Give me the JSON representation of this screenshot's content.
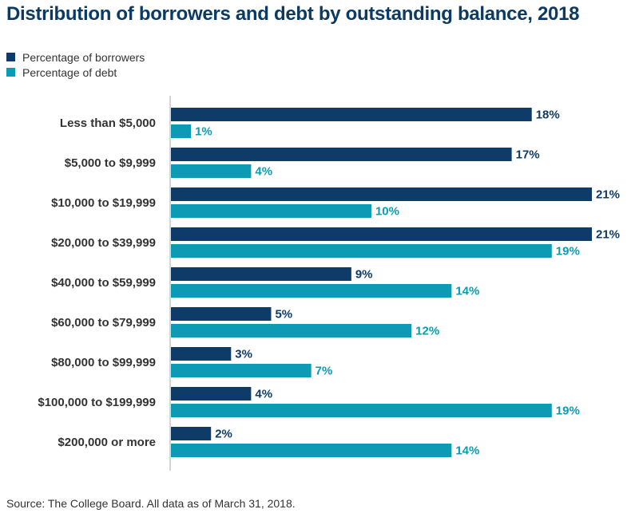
{
  "title": "Distribution of borrowers and debt by outstanding balance, 2018",
  "legend": [
    {
      "label": "Percentage of borrowers",
      "color": "#0f3b68"
    },
    {
      "label": "Percentage of debt",
      "color": "#0d9ab4"
    }
  ],
  "source": "Source: The College Board. All data as of March 31, 2018.",
  "chart_data": {
    "type": "bar",
    "orientation": "horizontal",
    "categories": [
      "Less than $5,000",
      "$5,000 to $9,999",
      "$10,000 to $19,999",
      "$20,000 to $39,999",
      "$40,000 to $59,999",
      "$60,000 to $79,999",
      "$80,000 to $99,999",
      "$100,000 to $199,999",
      "$200,000 or more"
    ],
    "series": [
      {
        "name": "Percentage of borrowers",
        "values": [
          18,
          17,
          21,
          21,
          9,
          5,
          3,
          4,
          2
        ],
        "color": "#0f3b68",
        "label_color": "#0f3b68"
      },
      {
        "name": "Percentage of debt",
        "values": [
          1,
          4,
          10,
          19,
          14,
          12,
          7,
          19,
          14
        ],
        "color": "#0d9ab4",
        "label_color": "#0d9ab4"
      }
    ],
    "value_suffix": "%",
    "xlim": [
      0,
      21
    ],
    "legend_position": "top-left",
    "grid": false
  }
}
